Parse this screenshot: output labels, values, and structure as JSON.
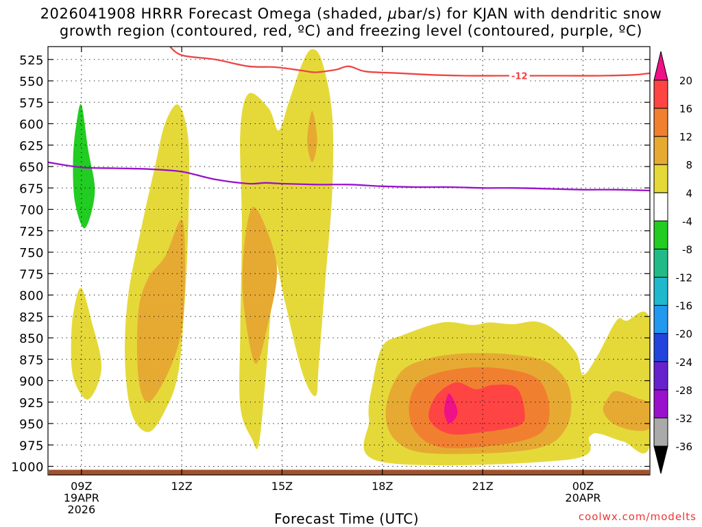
{
  "title": {
    "line1_pre": "2026041908 HRRR Forecast Omega (shaded, ",
    "line1_mu": "μ",
    "line1_post": "bar/s) for KJAN with dendritic snow",
    "line2": "growth region (contoured, red, ºC) and freezing level (contoured, purple, ºC)"
  },
  "credit": "coolwx.com/modelts",
  "chart_data": {
    "type": "heatmap",
    "title": "2026041908 HRRR Forecast Omega (shaded, μbar/s) for KJAN with dendritic snow growth region (contoured, red, ºC) and freezing level (contoured, purple, ºC)",
    "xlabel": "Forecast Time (UTC)",
    "ylabel": "",
    "xlim_hours": [
      8,
      26
    ],
    "ylim_mb": [
      1010,
      510
    ],
    "y_ticks": [
      525,
      550,
      575,
      600,
      625,
      650,
      675,
      700,
      725,
      750,
      775,
      800,
      825,
      850,
      875,
      900,
      925,
      950,
      975,
      1000
    ],
    "x_ticks": [
      {
        "hour": 9,
        "label": "09Z",
        "sub1": "19APR",
        "sub2": "2026"
      },
      {
        "hour": 12,
        "label": "12Z",
        "sub1": "",
        "sub2": ""
      },
      {
        "hour": 15,
        "label": "15Z",
        "sub1": "",
        "sub2": ""
      },
      {
        "hour": 18,
        "label": "18Z",
        "sub1": "",
        "sub2": ""
      },
      {
        "hour": 21,
        "label": "21Z",
        "sub1": "",
        "sub2": ""
      },
      {
        "hour": 24,
        "label": "00Z",
        "sub1": "20APR",
        "sub2": ""
      }
    ],
    "colorbar": {
      "labels": [
        "20",
        "16",
        "12",
        "8",
        "4",
        "-4",
        "-8",
        "-12",
        "-16",
        "-20",
        "-24",
        "-28",
        "-32",
        "-36"
      ],
      "bins": [
        {
          "range": [
            16,
            20
          ],
          "color": "#ff4444"
        },
        {
          "range": [
            12,
            16
          ],
          "color": "#f08030"
        },
        {
          "range": [
            8,
            12
          ],
          "color": "#e6aa33"
        },
        {
          "range": [
            4,
            8
          ],
          "color": "#e5d93a"
        },
        {
          "range": [
            -4,
            4
          ],
          "color": "#ffffff"
        },
        {
          "range": [
            -8,
            -4
          ],
          "color": "#22cc22"
        },
        {
          "range": [
            -12,
            -8
          ],
          "color": "#22bb88"
        },
        {
          "range": [
            -16,
            -12
          ],
          "color": "#20b8cc"
        },
        {
          "range": [
            -20,
            -16
          ],
          "color": "#2299ee"
        },
        {
          "range": [
            -24,
            -20
          ],
          "color": "#2244dd"
        },
        {
          "range": [
            -28,
            -24
          ],
          "color": "#6622cc"
        },
        {
          "range": [
            -32,
            -28
          ],
          "color": "#9911cc"
        },
        {
          "range": [
            -36,
            -32
          ],
          "color": "#aaaaaa"
        }
      ],
      "top_arrow_color": "#ee1188",
      "bottom_arrow_color": "#000000"
    },
    "shaded_regions": [
      {
        "label": "descent -4 to -8",
        "level": -6,
        "color": "#22cc22",
        "points": [
          [
            9.0,
            578
          ],
          [
            9.2,
            630
          ],
          [
            9.4,
            680
          ],
          [
            9.1,
            722
          ],
          [
            8.8,
            690
          ],
          [
            8.75,
            640
          ],
          [
            8.85,
            600
          ]
        ]
      },
      {
        "label": "ascent 4-8 cell 09Z low",
        "level": 6,
        "color": "#e5d93a",
        "points": [
          [
            9.0,
            792
          ],
          [
            9.3,
            830
          ],
          [
            9.6,
            885
          ],
          [
            9.2,
            922
          ],
          [
            8.75,
            895
          ],
          [
            8.7,
            845
          ],
          [
            8.8,
            812
          ]
        ]
      },
      {
        "label": "ascent 4-8 cell 11Z",
        "level": 6,
        "color": "#e5d93a",
        "points": [
          [
            11.9,
            578
          ],
          [
            12.2,
            620
          ],
          [
            12.2,
            710
          ],
          [
            12.1,
            800
          ],
          [
            11.9,
            890
          ],
          [
            11.5,
            935
          ],
          [
            11.0,
            960
          ],
          [
            10.5,
            938
          ],
          [
            10.3,
            875
          ],
          [
            10.4,
            800
          ],
          [
            10.8,
            720
          ],
          [
            11.2,
            650
          ],
          [
            11.5,
            600
          ]
        ]
      },
      {
        "label": "ascent 8-12 cell 11Z",
        "level": 10,
        "color": "#e6aa33",
        "points": [
          [
            12.0,
            712
          ],
          [
            12.1,
            770
          ],
          [
            12.0,
            840
          ],
          [
            11.6,
            890
          ],
          [
            11.0,
            925
          ],
          [
            10.7,
            895
          ],
          [
            10.7,
            820
          ],
          [
            11.0,
            780
          ],
          [
            11.5,
            755
          ]
        ]
      },
      {
        "label": "ascent 4-8 cell 14-16Z",
        "level": 6,
        "color": "#e5d93a",
        "points": [
          [
            14.0,
            565
          ],
          [
            14.6,
            582
          ],
          [
            14.9,
            608
          ],
          [
            15.2,
            575
          ],
          [
            15.6,
            530
          ],
          [
            15.9,
            513
          ],
          [
            16.2,
            528
          ],
          [
            16.5,
            590
          ],
          [
            16.5,
            680
          ],
          [
            16.3,
            780
          ],
          [
            16.1,
            880
          ],
          [
            16.0,
            918
          ],
          [
            15.6,
            890
          ],
          [
            15.1,
            810
          ],
          [
            14.8,
            760
          ],
          [
            14.7,
            800
          ],
          [
            14.5,
            900
          ],
          [
            14.3,
            975
          ],
          [
            14.1,
            968
          ],
          [
            13.75,
            930
          ],
          [
            13.75,
            840
          ],
          [
            13.8,
            720
          ],
          [
            13.75,
            610
          ]
        ]
      },
      {
        "label": "ascent 8-12 cell 14Z",
        "level": 10,
        "color": "#e6aa33",
        "points": [
          [
            14.1,
            698
          ],
          [
            14.5,
            720
          ],
          [
            14.85,
            770
          ],
          [
            14.6,
            830
          ],
          [
            14.2,
            880
          ],
          [
            13.85,
            810
          ],
          [
            13.85,
            750
          ]
        ]
      },
      {
        "label": "ascent 8-12 cell 16Z upper",
        "level": 10,
        "color": "#e6aa33",
        "points": [
          [
            15.9,
            585
          ],
          [
            16.05,
            620
          ],
          [
            15.9,
            645
          ],
          [
            15.75,
            620
          ]
        ]
      },
      {
        "label": "ascent 4-8 cell 18-00Z low",
        "level": 6,
        "color": "#e5d93a",
        "points": [
          [
            18.0,
            860
          ],
          [
            18.6,
            847
          ],
          [
            19.8,
            832
          ],
          [
            20.7,
            835
          ],
          [
            21.2,
            832
          ],
          [
            21.9,
            834
          ],
          [
            22.6,
            831
          ],
          [
            23.2,
            842
          ],
          [
            23.8,
            868
          ],
          [
            24.0,
            893
          ],
          [
            24.4,
            873
          ],
          [
            25.0,
            830
          ],
          [
            25.3,
            830
          ],
          [
            26.0,
            830
          ],
          [
            26.0,
            975
          ],
          [
            25.2,
            971
          ],
          [
            24.5,
            962
          ],
          [
            24.2,
            965
          ],
          [
            23.6,
            992
          ],
          [
            18.0,
            995
          ],
          [
            17.6,
            945
          ],
          [
            17.7,
            905
          ]
        ]
      },
      {
        "label": "ascent 8-12 cell 18-00Z low",
        "level": 10,
        "color": "#e6aa33",
        "points": [
          [
            18.5,
            892
          ],
          [
            19.3,
            875
          ],
          [
            20.5,
            868
          ],
          [
            22.0,
            870
          ],
          [
            23.0,
            880
          ],
          [
            23.6,
            910
          ],
          [
            23.5,
            955
          ],
          [
            22.5,
            980
          ],
          [
            19.5,
            985
          ],
          [
            18.4,
            970
          ],
          [
            18.1,
            935
          ]
        ]
      },
      {
        "label": "ascent 12-16 cell 18-00Z low",
        "level": 14,
        "color": "#f08030",
        "points": [
          [
            19.2,
            898
          ],
          [
            20.5,
            885
          ],
          [
            21.8,
            887
          ],
          [
            22.7,
            900
          ],
          [
            23.0,
            935
          ],
          [
            22.7,
            962
          ],
          [
            21.5,
            975
          ],
          [
            19.8,
            978
          ],
          [
            19.0,
            960
          ],
          [
            18.8,
            928
          ]
        ]
      },
      {
        "label": "ascent 16-20 cell 18-00Z low",
        "level": 18,
        "color": "#ff4444",
        "points": [
          [
            19.6,
            918
          ],
          [
            20.2,
            902
          ],
          [
            20.8,
            910
          ],
          [
            21.3,
            905
          ],
          [
            22.0,
            908
          ],
          [
            22.25,
            935
          ],
          [
            22.1,
            952
          ],
          [
            21.0,
            960
          ],
          [
            20.0,
            962
          ],
          [
            19.4,
            945
          ]
        ]
      },
      {
        "label": "ascent >20 cell 20Z",
        "level": 22,
        "color": "#ee1188",
        "points": [
          [
            20.0,
            915
          ],
          [
            20.25,
            937
          ],
          [
            20.0,
            950
          ],
          [
            19.85,
            935
          ]
        ]
      },
      {
        "label": "ascent 8-12 cell 00Z+",
        "level": 10,
        "color": "#e6aa33",
        "points": [
          [
            25.0,
            912
          ],
          [
            25.6,
            920
          ],
          [
            26.0,
            928
          ],
          [
            26.0,
            955
          ],
          [
            25.5,
            958
          ],
          [
            24.9,
            950
          ],
          [
            24.6,
            935
          ],
          [
            24.75,
            920
          ]
        ]
      }
    ],
    "contours": [
      {
        "name": "dendritic growth region -12 ºC",
        "color": "#ee4444",
        "label": "-12",
        "label_at_hour": 22.1,
        "points": [
          [
            11.6,
            508
          ],
          [
            12.0,
            520
          ],
          [
            13.0,
            525
          ],
          [
            14.0,
            533
          ],
          [
            14.8,
            534
          ],
          [
            15.6,
            538
          ],
          [
            16.0,
            540
          ],
          [
            16.6,
            537
          ],
          [
            17.0,
            533
          ],
          [
            17.5,
            539
          ],
          [
            18.5,
            541
          ],
          [
            19.5,
            543
          ],
          [
            20.5,
            544
          ],
          [
            21.5,
            544
          ],
          [
            22.5,
            544
          ],
          [
            23.5,
            544
          ],
          [
            24.5,
            544
          ],
          [
            25.5,
            543
          ],
          [
            26.0,
            541
          ]
        ]
      },
      {
        "name": "freezing level 0 ºC",
        "color": "#9911cc",
        "label": "",
        "label_at_hour": null,
        "points": [
          [
            8.0,
            645
          ],
          [
            9.0,
            651
          ],
          [
            10.0,
            652
          ],
          [
            11.0,
            653
          ],
          [
            12.0,
            656
          ],
          [
            13.0,
            665
          ],
          [
            14.0,
            670
          ],
          [
            14.5,
            669
          ],
          [
            15.0,
            670
          ],
          [
            16.0,
            671
          ],
          [
            17.0,
            671
          ],
          [
            17.5,
            672
          ],
          [
            18.0,
            673
          ],
          [
            19.0,
            674
          ],
          [
            20.0,
            674
          ],
          [
            21.0,
            675
          ],
          [
            22.0,
            675
          ],
          [
            23.0,
            676
          ],
          [
            24.0,
            677
          ],
          [
            25.0,
            677
          ],
          [
            26.0,
            678
          ]
        ]
      }
    ],
    "ground": {
      "pressure_mb": 1004,
      "color": "#a0522d"
    }
  }
}
